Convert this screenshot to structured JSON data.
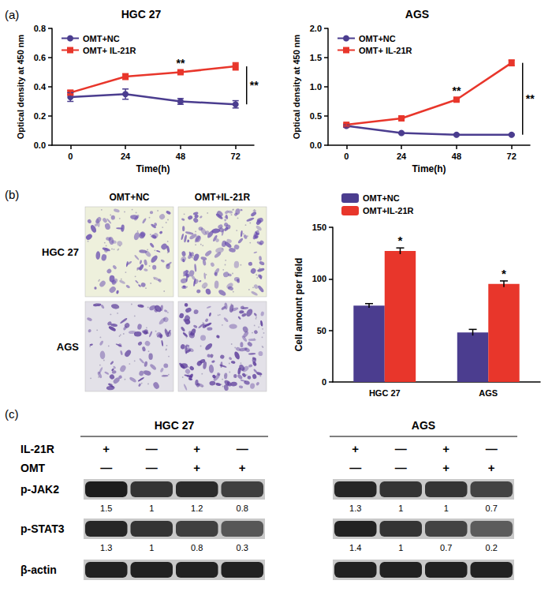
{
  "chart_data": [
    {
      "type": "line",
      "title": "HGC 27",
      "x_label": "Time(h)",
      "y_label": "Optical density at 450 nm",
      "x": [
        0,
        24,
        48,
        72
      ],
      "xlim": [
        -8,
        80
      ],
      "xticks": [
        0,
        24,
        48,
        72
      ],
      "ylim": [
        0,
        0.8
      ],
      "yticks": [
        {
          "value": 0,
          "label": "0.0"
        },
        0.2,
        0.4,
        0.6,
        0.8
      ],
      "grid": false,
      "legend": "top-left",
      "series": [
        {
          "name": "OMT+NC",
          "color": "#4b3d8f",
          "marker": "circle",
          "values": [
            0.33,
            0.35,
            0.3,
            0.28
          ],
          "errors": [
            0.03,
            0.035,
            0.02,
            0.025
          ]
        },
        {
          "name": "OMT+ IL-21R",
          "color": "#e8362b",
          "marker": "square",
          "values": [
            0.36,
            0.47,
            0.5,
            0.54
          ],
          "errors": [
            0.015,
            0.02,
            0.01,
            0.025
          ]
        }
      ],
      "annotations": [
        {
          "text": "**",
          "x": 48,
          "series": "OMT+ IL-21R"
        },
        {
          "text": "**",
          "x": 72,
          "bracket": [
            "OMT+NC",
            "OMT+ IL-21R"
          ]
        }
      ]
    },
    {
      "type": "line",
      "title": "AGS",
      "x_label": "Time(h)",
      "y_label": "Optical density at 450 nm",
      "x": [
        0,
        24,
        48,
        72
      ],
      "xlim": [
        -8,
        80
      ],
      "xticks": [
        0,
        24,
        48,
        72
      ],
      "ylim": [
        0,
        2.0
      ],
      "yticks": [
        {
          "value": 0,
          "label": "0.0"
        },
        0.5,
        {
          "value": 1,
          "label": "1.0"
        },
        1.5,
        {
          "value": 2,
          "label": "2.0"
        }
      ],
      "grid": false,
      "legend": "top-left",
      "series": [
        {
          "name": "OMT+NC",
          "color": "#4b3d8f",
          "marker": "circle",
          "values": [
            0.33,
            0.21,
            0.18,
            0.18
          ],
          "errors": [
            0.02,
            0.01,
            0.01,
            0.01
          ]
        },
        {
          "name": "OMT+ IL-21R",
          "color": "#e8362b",
          "marker": "square",
          "values": [
            0.35,
            0.46,
            0.78,
            1.41
          ],
          "errors": [
            0.02,
            0.01,
            0.02,
            0.05
          ]
        }
      ],
      "annotations": [
        {
          "text": "**",
          "x": 48,
          "series": "OMT+ IL-21R"
        },
        {
          "text": "**",
          "x": 72,
          "bracket": [
            "OMT+NC",
            "OMT+ IL-21R"
          ]
        }
      ]
    },
    {
      "type": "bar",
      "y_label": "Cell amount per field",
      "categories": [
        "HGC 27",
        "AGS"
      ],
      "ylim": [
        0,
        150
      ],
      "yticks": [
        0,
        50,
        100,
        150
      ],
      "grid": false,
      "legend": "top-left",
      "series": [
        {
          "name": "OMT+NC",
          "color": "#4b3d8f",
          "values": [
            74,
            48
          ],
          "errors": [
            2,
            3
          ]
        },
        {
          "name": "OMT+IL-21R",
          "color": "#e8362b",
          "values": [
            127,
            95
          ],
          "errors": [
            3,
            3
          ]
        }
      ],
      "annotations": [
        {
          "text": "*",
          "series": "OMT+IL-21R",
          "category": "HGC 27"
        },
        {
          "text": "*",
          "series": "OMT+IL-21R",
          "category": "AGS"
        }
      ]
    }
  ],
  "panel_labels": [
    "(a)",
    "(b)",
    "(c)"
  ],
  "micrographs": {
    "columns": [
      "OMT+NC",
      "OMT+IL-21R"
    ],
    "rows": [
      "HGC 27",
      "AGS"
    ]
  },
  "blot_labels": {
    "conditions": [
      "IL-21R",
      "OMT"
    ],
    "bands": [
      "p-JAK2",
      "p-STAT3",
      "β-actin"
    ]
  },
  "blots": [
    {
      "title": "HGC 27",
      "signs": [
        [
          "+",
          "—",
          "+",
          "—"
        ],
        [
          "—",
          "—",
          "+",
          "+"
        ]
      ],
      "values": [
        [
          1.5,
          1,
          1.2,
          0.8
        ],
        [
          1.3,
          1,
          0.8,
          0.3
        ]
      ]
    },
    {
      "title": "AGS",
      "signs": [
        [
          "+",
          "—",
          "+",
          "—"
        ],
        [
          "—",
          "—",
          "+",
          "+"
        ]
      ],
      "values": [
        [
          1.3,
          1,
          1,
          0.7
        ],
        [
          1.4,
          1,
          0.7,
          0.2
        ]
      ]
    }
  ]
}
